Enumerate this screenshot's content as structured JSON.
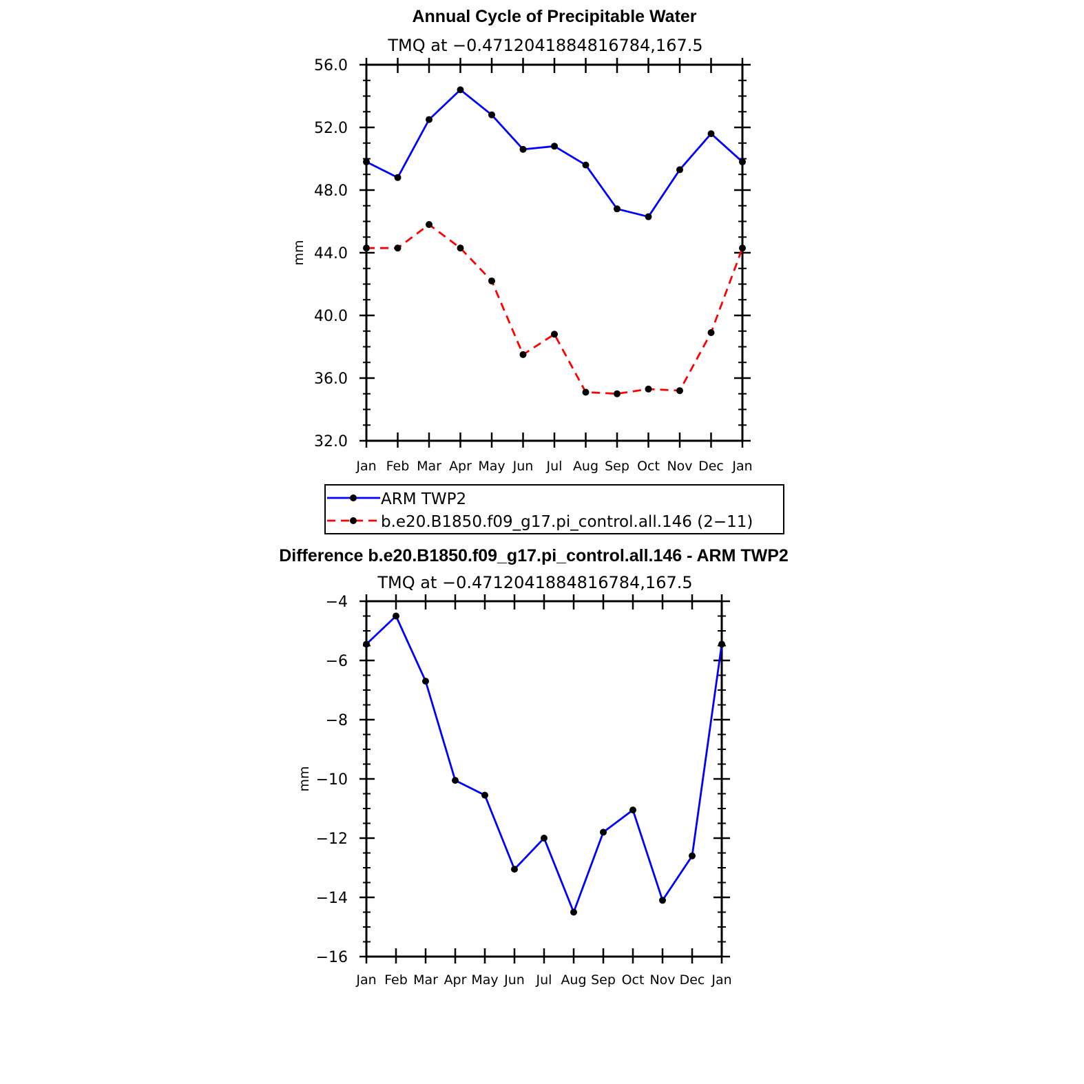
{
  "chart_data": [
    {
      "type": "line",
      "title": "Annual Cycle of Precipitable Water",
      "subtitle": "TMQ at −0.4712041884816784,167.5",
      "xlabel": "",
      "ylabel": "mm",
      "categories": [
        "Jan",
        "Feb",
        "Mar",
        "Apr",
        "May",
        "Jun",
        "Jul",
        "Aug",
        "Sep",
        "Oct",
        "Nov",
        "Dec",
        "Jan"
      ],
      "ylim": [
        32,
        56
      ],
      "yticks": [
        32,
        36,
        40,
        44,
        48,
        52,
        56
      ],
      "ytick_labels": [
        "32.0",
        "36.0",
        "40.0",
        "44.0",
        "48.0",
        "52.0",
        "56.0"
      ],
      "grid": false,
      "legend_position": "bottom",
      "series": [
        {
          "name": "ARM TWP2",
          "color": "#0000ff",
          "dash": "solid",
          "values": [
            49.8,
            48.8,
            52.5,
            54.4,
            52.8,
            50.6,
            50.8,
            49.6,
            46.8,
            46.3,
            49.3,
            51.6,
            49.8
          ]
        },
        {
          "name": "b.e20.B1850.f09_g17.pi_control.all.146 (2−11)",
          "color": "#ff0000",
          "dash": "dashed",
          "values": [
            44.3,
            44.3,
            45.8,
            44.3,
            42.2,
            37.5,
            38.8,
            35.1,
            35.0,
            35.3,
            35.2,
            38.9,
            44.3
          ]
        }
      ]
    },
    {
      "type": "line",
      "title": "Difference b.e20.B1850.f09_g17.pi_control.all.146 - ARM TWP2",
      "subtitle": "TMQ at −0.4712041884816784,167.5",
      "xlabel": "",
      "ylabel": "mm",
      "categories": [
        "Jan",
        "Feb",
        "Mar",
        "Apr",
        "May",
        "Jun",
        "Jul",
        "Aug",
        "Sep",
        "Oct",
        "Nov",
        "Dec",
        "Jan"
      ],
      "ylim": [
        -16,
        -4
      ],
      "yticks": [
        -16,
        -14,
        -12,
        -10,
        -8,
        -6,
        -4
      ],
      "ytick_labels": [
        "−16",
        "−14",
        "−12",
        "−10",
        "−8",
        "−6",
        "−4"
      ],
      "grid": false,
      "series": [
        {
          "name": "Difference",
          "color": "#0000ff",
          "dash": "solid",
          "values": [
            -5.45,
            -4.5,
            -6.7,
            -10.05,
            -10.55,
            -13.05,
            -12.0,
            -14.5,
            -11.8,
            -11.05,
            -14.1,
            -12.6,
            -5.45
          ]
        }
      ]
    }
  ]
}
